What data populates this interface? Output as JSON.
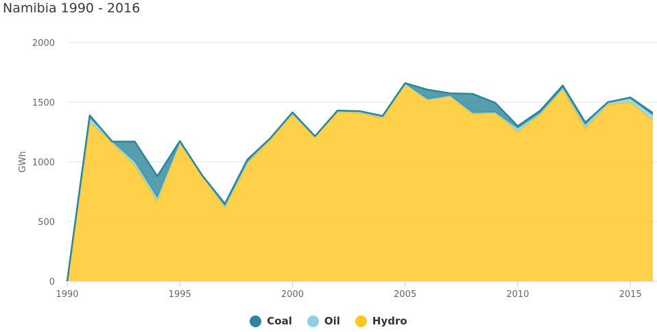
{
  "chart_data": {
    "type": "area",
    "stacked": true,
    "title": "Namibia 1990 - 2016",
    "ylabel": "GWh",
    "xlabel": "",
    "xlim": [
      1990,
      2016
    ],
    "ylim": [
      0,
      2000
    ],
    "x_ticks": [
      1990,
      1995,
      2000,
      2005,
      2010,
      2015
    ],
    "y_ticks": [
      0,
      500,
      1000,
      1500,
      2000
    ],
    "grid": "horizontal",
    "legend_position": "bottom",
    "x": [
      1990,
      1991,
      1992,
      1993,
      1994,
      1995,
      1996,
      1997,
      1998,
      1999,
      2000,
      2001,
      2002,
      2003,
      2004,
      2005,
      2006,
      2007,
      2008,
      2009,
      2010,
      2011,
      2012,
      2013,
      2014,
      2015,
      2016
    ],
    "series": [
      {
        "name": "Hydro",
        "color": "#ffc61e",
        "values": [
          0,
          1330,
          1160,
          970,
          670,
          1160,
          880,
          620,
          990,
          1180,
          1400,
          1210,
          1420,
          1410,
          1370,
          1650,
          1520,
          1550,
          1400,
          1410,
          1250,
          1400,
          1610,
          1280,
          1480,
          1500,
          1350
        ]
      },
      {
        "name": "Oil",
        "color": "#8fcfe3",
        "values": [
          0,
          40,
          10,
          30,
          30,
          5,
          5,
          10,
          10,
          15,
          5,
          5,
          5,
          10,
          10,
          5,
          5,
          5,
          10,
          5,
          30,
          10,
          10,
          30,
          20,
          30,
          40
        ]
      },
      {
        "name": "Coal",
        "color": "#2c8599",
        "values": [
          0,
          20,
          0,
          170,
          180,
          10,
          0,
          20,
          20,
          0,
          10,
          0,
          5,
          5,
          5,
          5,
          80,
          20,
          160,
          80,
          20,
          20,
          20,
          20,
          0,
          10,
          20
        ]
      }
    ]
  },
  "legend": {
    "items": [
      {
        "label": "Coal",
        "color": "#2c8599"
      },
      {
        "label": "Oil",
        "color": "#8fcfe3"
      },
      {
        "label": "Hydro",
        "color": "#ffc61e"
      }
    ]
  }
}
